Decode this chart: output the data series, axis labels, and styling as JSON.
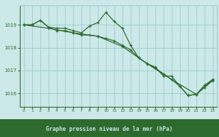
{
  "background_color": "#cce8e8",
  "plot_bg_color": "#cce8e8",
  "footer_bg_color": "#2d6a2d",
  "grid_color": "#99cccc",
  "line_color": "#2d6a2d",
  "tick_color": "#2d6a2d",
  "footer_text_color": "#cce8e8",
  "title": "Graphe pression niveau de la mer (hPa)",
  "xlim": [
    -0.5,
    23.5
  ],
  "ylim": [
    1015.4,
    1019.85
  ],
  "yticks": [
    1016,
    1017,
    1018,
    1019
  ],
  "xtick_labels": [
    "0",
    "1",
    "2",
    "3",
    "4",
    "5",
    "6",
    "7",
    "8",
    "9",
    "10",
    "11",
    "12",
    "13",
    "14",
    "15",
    "16",
    "17",
    "18",
    "19",
    "20",
    "21",
    "22",
    "23"
  ],
  "xticks": [
    0,
    1,
    2,
    3,
    4,
    5,
    6,
    7,
    8,
    9,
    10,
    11,
    12,
    13,
    14,
    15,
    16,
    17,
    18,
    19,
    20,
    21,
    22,
    23
  ],
  "series": [
    {
      "x": [
        0,
        1,
        2,
        3,
        4,
        5,
        6,
        7,
        8,
        9,
        10,
        11,
        12,
        13,
        14,
        15,
        16,
        17,
        18,
        19,
        20,
        21,
        22,
        23
      ],
      "y": [
        1019.0,
        1019.0,
        1019.2,
        1018.9,
        1018.85,
        1018.85,
        1018.75,
        1018.65,
        1018.95,
        1019.1,
        1019.55,
        1019.15,
        1018.85,
        1018.1,
        1017.55,
        1017.3,
        1017.15,
        1016.75,
        1016.75,
        1016.3,
        1015.9,
        1015.95,
        1016.35,
        1016.6
      ]
    },
    {
      "x": [
        0,
        1,
        2,
        3,
        4,
        5,
        6,
        7,
        8,
        9,
        10,
        11,
        12,
        13,
        14,
        15,
        16,
        17,
        18,
        19,
        20,
        21,
        22,
        23
      ],
      "y": [
        1019.0,
        1019.0,
        1019.2,
        1018.9,
        1018.75,
        1018.75,
        1018.65,
        1018.55,
        1018.55,
        1018.5,
        1018.4,
        1018.3,
        1018.1,
        1017.9,
        1017.55,
        1017.3,
        1017.1,
        1016.85,
        1016.6,
        1016.3,
        1015.9,
        1015.95,
        1016.25,
        1016.55
      ]
    },
    {
      "x": [
        0,
        3,
        6,
        9,
        12,
        15,
        18,
        21,
        23
      ],
      "y": [
        1019.0,
        1018.85,
        1018.65,
        1018.5,
        1018.05,
        1017.3,
        1016.6,
        1015.95,
        1016.6
      ]
    }
  ]
}
